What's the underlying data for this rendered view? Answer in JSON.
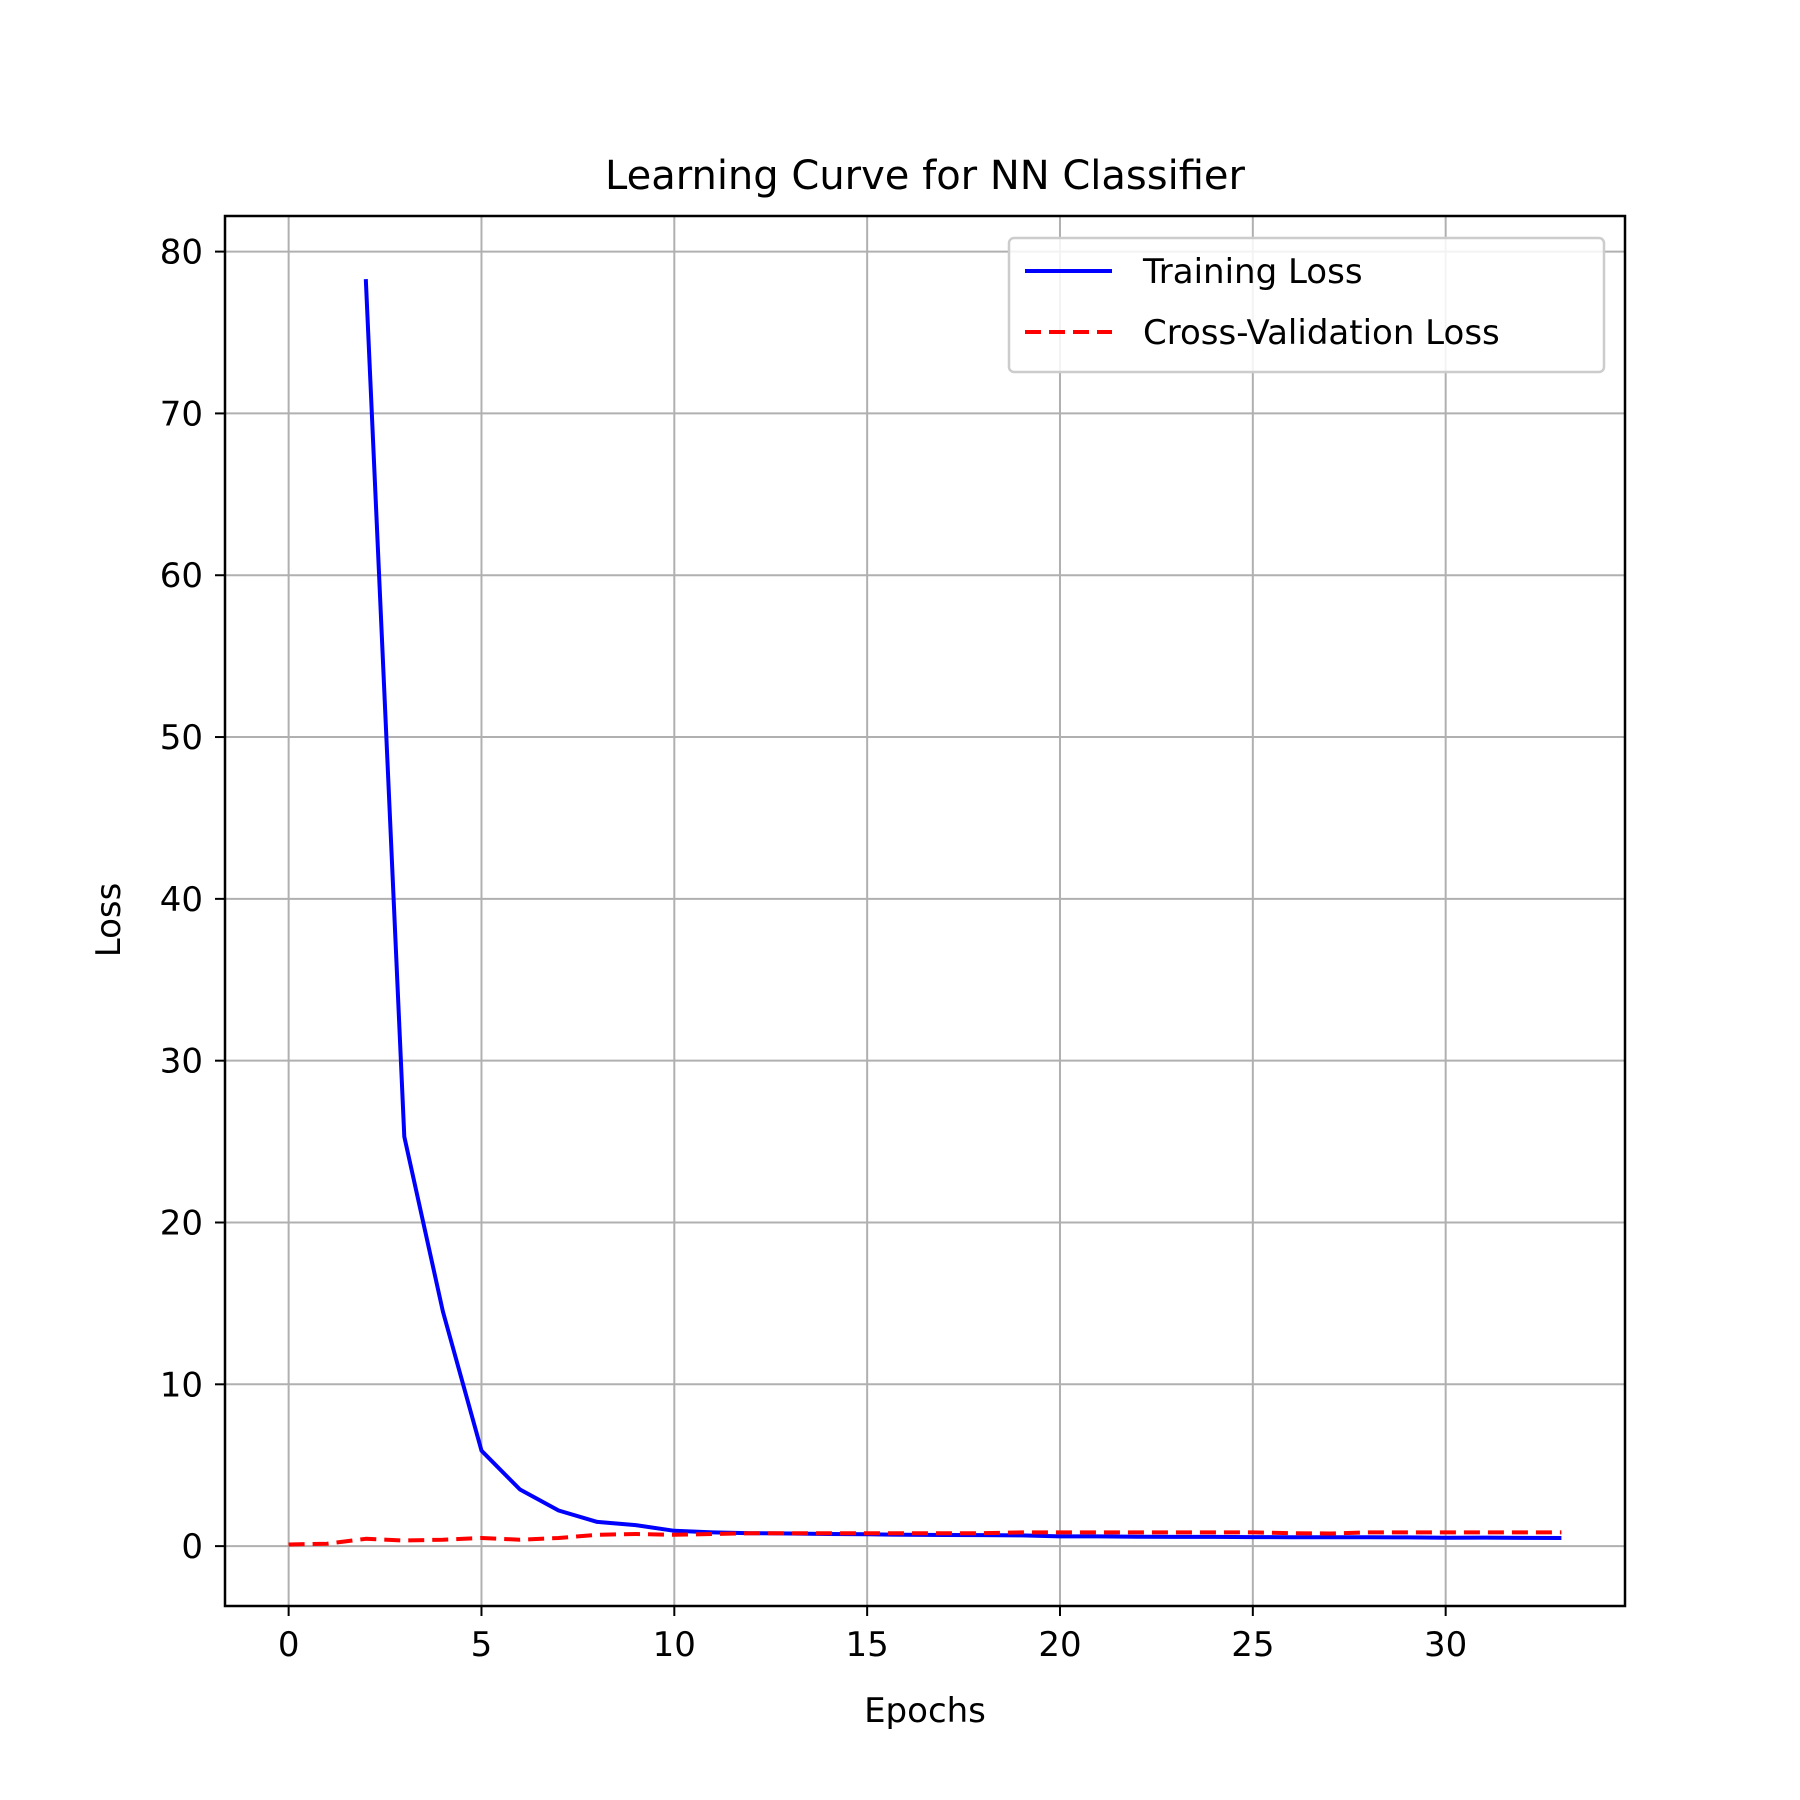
{
  "chart_data": {
    "type": "line",
    "title": "Learning Curve for NN Classifier",
    "xlabel": "Epochs",
    "ylabel": "Loss",
    "xlim": [
      -1.65,
      34.65
    ],
    "ylim": [
      -3.7,
      82.2
    ],
    "xticks": [
      0,
      5,
      10,
      15,
      20,
      25,
      30
    ],
    "yticks": [
      0,
      10,
      20,
      30,
      40,
      50,
      60,
      70,
      80
    ],
    "grid": true,
    "legend_position": "top-right",
    "series": [
      {
        "name": "Training Loss",
        "color": "#0000ff",
        "style": "solid",
        "x": [
          2,
          3,
          4,
          5,
          6,
          7,
          8,
          9,
          10,
          11,
          12,
          13,
          14,
          15,
          16,
          17,
          18,
          19,
          20,
          21,
          22,
          23,
          24,
          25,
          26,
          27,
          28,
          29,
          30,
          31,
          32,
          33
        ],
        "y": [
          78.3,
          25.3,
          14.5,
          5.9,
          3.5,
          2.2,
          1.5,
          1.3,
          0.95,
          0.85,
          0.8,
          0.78,
          0.75,
          0.73,
          0.7,
          0.69,
          0.68,
          0.66,
          0.6,
          0.6,
          0.58,
          0.57,
          0.57,
          0.56,
          0.55,
          0.55,
          0.55,
          0.54,
          0.52,
          0.53,
          0.51,
          0.5
        ]
      },
      {
        "name": "Cross-Validation Loss",
        "color": "#ff0000",
        "style": "dashed",
        "x": [
          0,
          1,
          2,
          3,
          4,
          5,
          6,
          7,
          8,
          9,
          10,
          11,
          12,
          13,
          14,
          15,
          16,
          17,
          18,
          19,
          20,
          21,
          22,
          23,
          24,
          25,
          26,
          27,
          28,
          29,
          30,
          31,
          32,
          33
        ],
        "y": [
          0.1,
          0.15,
          0.45,
          0.35,
          0.4,
          0.5,
          0.4,
          0.5,
          0.7,
          0.75,
          0.7,
          0.75,
          0.8,
          0.8,
          0.8,
          0.8,
          0.8,
          0.8,
          0.8,
          0.85,
          0.85,
          0.85,
          0.85,
          0.85,
          0.85,
          0.85,
          0.8,
          0.78,
          0.85,
          0.85,
          0.85,
          0.85,
          0.85,
          0.85
        ]
      }
    ]
  }
}
